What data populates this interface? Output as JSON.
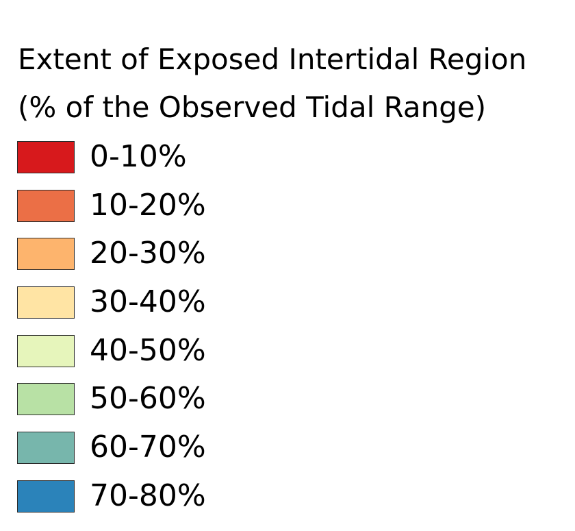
{
  "legend": {
    "title_line1": "Extent of Exposed Intertidal Region",
    "title_line2": "(% of the Observed Tidal Range)",
    "items": [
      {
        "label": "0-10%",
        "color": "#d7191c"
      },
      {
        "label": "10-20%",
        "color": "#eb6f46"
      },
      {
        "label": "20-30%",
        "color": "#fdb46d"
      },
      {
        "label": "30-40%",
        "color": "#ffe4a4"
      },
      {
        "label": "40-50%",
        "color": "#e6f5bb"
      },
      {
        "label": "50-60%",
        "color": "#b8e1a5"
      },
      {
        "label": "60-70%",
        "color": "#77b6ac"
      },
      {
        "label": "70-80%",
        "color": "#2b83ba"
      }
    ]
  }
}
